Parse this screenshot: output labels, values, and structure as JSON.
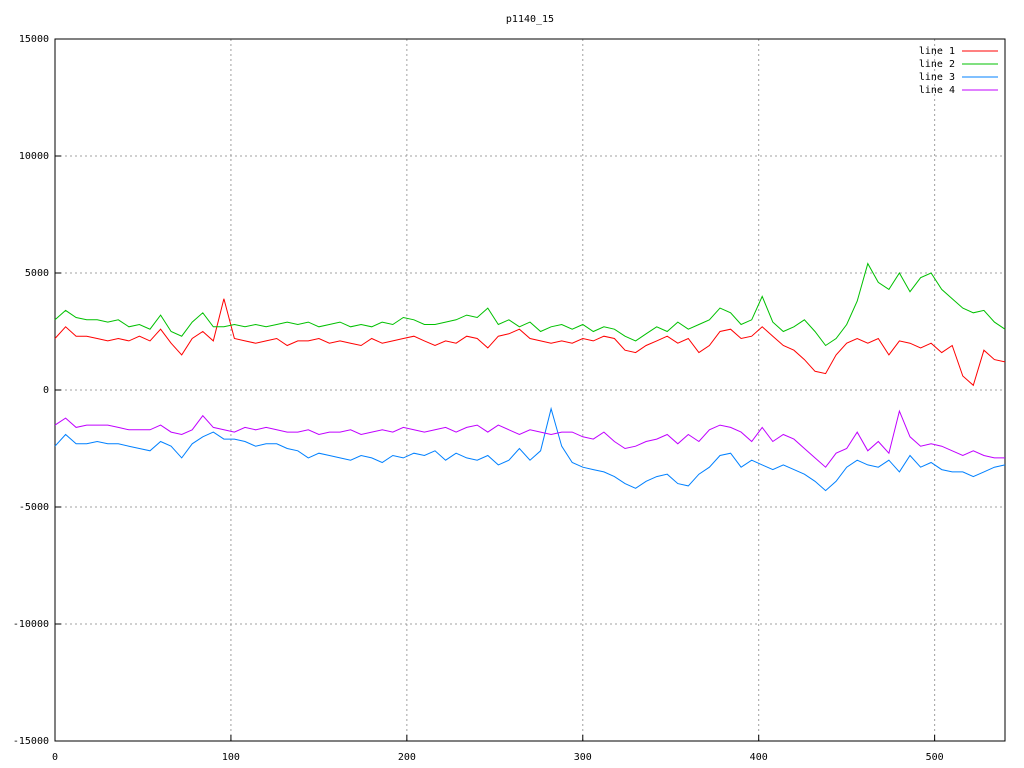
{
  "chart_data": {
    "type": "line",
    "title": "p1140_15",
    "x": [
      0,
      6,
      12,
      18,
      24,
      30,
      36,
      42,
      48,
      54,
      60,
      66,
      72,
      78,
      84,
      90,
      96,
      102,
      108,
      114,
      120,
      126,
      132,
      138,
      144,
      150,
      156,
      162,
      168,
      174,
      180,
      186,
      192,
      198,
      204,
      210,
      216,
      222,
      228,
      234,
      240,
      246,
      252,
      258,
      264,
      270,
      276,
      282,
      288,
      294,
      300,
      306,
      312,
      318,
      324,
      330,
      336,
      342,
      348,
      354,
      360,
      366,
      372,
      378,
      384,
      390,
      396,
      402,
      408,
      414,
      420,
      426,
      432,
      438,
      444,
      450,
      456,
      462,
      468,
      474,
      480,
      486,
      492,
      498,
      504,
      510,
      516,
      522,
      528,
      534,
      540
    ],
    "series": [
      {
        "name": "line 1",
        "color": "#ff0000",
        "values": [
          2200,
          2700,
          2300,
          2300,
          2200,
          2100,
          2200,
          2100,
          2300,
          2100,
          2600,
          2000,
          1500,
          2200,
          2500,
          2100,
          3900,
          2200,
          2100,
          2000,
          2100,
          2200,
          1900,
          2100,
          2100,
          2200,
          2000,
          2100,
          2000,
          1900,
          2200,
          2000,
          2100,
          2200,
          2300,
          2100,
          1900,
          2100,
          2000,
          2300,
          2200,
          1800,
          2300,
          2400,
          2600,
          2200,
          2100,
          2000,
          2100,
          2000,
          2200,
          2100,
          2300,
          2200,
          1700,
          1600,
          1900,
          2100,
          2300,
          2000,
          2200,
          1600,
          1900,
          2500,
          2600,
          2200,
          2300,
          2700,
          2300,
          1900,
          1700,
          1300,
          800,
          700,
          1500,
          2000,
          2200,
          2000,
          2200,
          1500,
          2100,
          2000,
          1800,
          2000,
          1600,
          1900,
          600,
          200,
          1700,
          1300,
          1200
        ]
      },
      {
        "name": "line 2",
        "color": "#00c000",
        "values": [
          3000,
          3400,
          3100,
          3000,
          3000,
          2900,
          3000,
          2700,
          2800,
          2600,
          3200,
          2500,
          2300,
          2900,
          3300,
          2700,
          2700,
          2800,
          2700,
          2800,
          2700,
          2800,
          2900,
          2800,
          2900,
          2700,
          2800,
          2900,
          2700,
          2800,
          2700,
          2900,
          2800,
          3100,
          3000,
          2800,
          2800,
          2900,
          3000,
          3200,
          3100,
          3500,
          2800,
          3000,
          2700,
          2900,
          2500,
          2700,
          2800,
          2600,
          2800,
          2500,
          2700,
          2600,
          2300,
          2100,
          2400,
          2700,
          2500,
          2900,
          2600,
          2800,
          3000,
          3500,
          3300,
          2800,
          3000,
          4000,
          2900,
          2500,
          2700,
          3000,
          2500,
          1900,
          2200,
          2800,
          3800,
          5400,
          4600,
          4300,
          5000,
          4200,
          4800,
          5000,
          4300,
          3900,
          3500,
          3300,
          3400,
          2900,
          2600
        ]
      },
      {
        "name": "line 3",
        "color": "#0080ff",
        "values": [
          -2400,
          -1900,
          -2300,
          -2300,
          -2200,
          -2300,
          -2300,
          -2400,
          -2500,
          -2600,
          -2200,
          -2400,
          -2900,
          -2300,
          -2000,
          -1800,
          -2100,
          -2100,
          -2200,
          -2400,
          -2300,
          -2300,
          -2500,
          -2600,
          -2900,
          -2700,
          -2800,
          -2900,
          -3000,
          -2800,
          -2900,
          -3100,
          -2800,
          -2900,
          -2700,
          -2800,
          -2600,
          -3000,
          -2700,
          -2900,
          -3000,
          -2800,
          -3200,
          -3000,
          -2500,
          -3000,
          -2600,
          -800,
          -2400,
          -3100,
          -3300,
          -3400,
          -3500,
          -3700,
          -4000,
          -4200,
          -3900,
          -3700,
          -3600,
          -4000,
          -4100,
          -3600,
          -3300,
          -2800,
          -2700,
          -3300,
          -3000,
          -3200,
          -3400,
          -3200,
          -3400,
          -3600,
          -3900,
          -4300,
          -3900,
          -3300,
          -3000,
          -3200,
          -3300,
          -3000,
          -3500,
          -2800,
          -3300,
          -3100,
          -3400,
          -3500,
          -3500,
          -3700,
          -3500,
          -3300,
          -3200
        ]
      },
      {
        "name": "line 4",
        "color": "#c000ff",
        "values": [
          -1500,
          -1200,
          -1600,
          -1500,
          -1500,
          -1500,
          -1600,
          -1700,
          -1700,
          -1700,
          -1500,
          -1800,
          -1900,
          -1700,
          -1100,
          -1600,
          -1700,
          -1800,
          -1600,
          -1700,
          -1600,
          -1700,
          -1800,
          -1800,
          -1700,
          -1900,
          -1800,
          -1800,
          -1700,
          -1900,
          -1800,
          -1700,
          -1800,
          -1600,
          -1700,
          -1800,
          -1700,
          -1600,
          -1800,
          -1600,
          -1500,
          -1800,
          -1500,
          -1700,
          -1900,
          -1700,
          -1800,
          -1900,
          -1800,
          -1800,
          -2000,
          -2100,
          -1800,
          -2200,
          -2500,
          -2400,
          -2200,
          -2100,
          -1900,
          -2300,
          -1900,
          -2200,
          -1700,
          -1500,
          -1600,
          -1800,
          -2200,
          -1600,
          -2200,
          -1900,
          -2100,
          -2500,
          -2900,
          -3300,
          -2700,
          -2500,
          -1800,
          -2600,
          -2200,
          -2700,
          -900,
          -2000,
          -2400,
          -2300,
          -2400,
          -2600,
          -2800,
          -2600,
          -2800,
          -2900,
          -2900
        ]
      }
    ],
    "xlim": [
      0,
      540
    ],
    "ylim": [
      -15000,
      15000
    ],
    "xticks": [
      0,
      100,
      200,
      300,
      400,
      500
    ],
    "yticks": [
      -15000,
      -10000,
      -5000,
      0,
      5000,
      10000,
      15000
    ],
    "grid": true,
    "legend": "top-right"
  }
}
